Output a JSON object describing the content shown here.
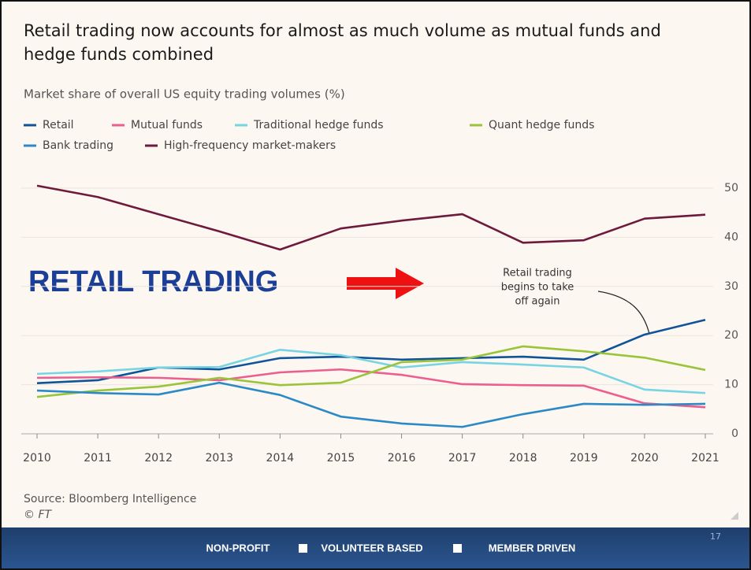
{
  "chart_data": {
    "type": "line",
    "title": "Retail trading now accounts for almost as much volume as mutual funds and hedge funds combined",
    "subtitle": "Market share of overall US equity trading volumes (%)",
    "x": [
      2010,
      2011,
      2012,
      2013,
      2014,
      2015,
      2016,
      2017,
      2018,
      2019,
      2020,
      2021
    ],
    "xlim": [
      2010,
      2021
    ],
    "xticks": [
      2010,
      2011,
      2012,
      2013,
      2014,
      2015,
      2016,
      2017,
      2018,
      2019,
      2020,
      2021
    ],
    "ylim": [
      0,
      50
    ],
    "yticks": [
      0,
      10,
      20,
      30,
      40,
      50
    ],
    "grid": true,
    "series": [
      {
        "name": "Retail",
        "color": "#0f5499",
        "values": [
          10.3,
          10.9,
          13.5,
          13.1,
          15.4,
          15.7,
          15.1,
          15.4,
          15.7,
          15.1,
          20.2,
          23.2
        ]
      },
      {
        "name": "Mutual funds",
        "color": "#eb5e8d",
        "values": [
          11.4,
          11.5,
          11.4,
          10.9,
          12.5,
          13.1,
          12.0,
          10.1,
          9.9,
          9.8,
          6.2,
          5.4
        ]
      },
      {
        "name": "Traditional hedge funds",
        "color": "#76d4e3",
        "values": [
          12.2,
          12.7,
          13.5,
          13.6,
          17.1,
          16.0,
          13.5,
          14.6,
          14.1,
          13.5,
          9.0,
          8.3
        ]
      },
      {
        "name": "Quant hedge funds",
        "color": "#9ac43a",
        "values": [
          7.5,
          8.8,
          9.6,
          11.4,
          9.9,
          10.4,
          14.6,
          15.1,
          17.8,
          16.8,
          15.5,
          13.0
        ]
      },
      {
        "name": "Bank trading",
        "color": "#2b8ac6",
        "values": [
          8.8,
          8.3,
          8.0,
          10.4,
          7.9,
          3.5,
          2.1,
          1.4,
          4.0,
          6.1,
          5.9,
          6.1
        ]
      },
      {
        "name": "High-frequency market-makers",
        "color": "#6e1a3c",
        "values": [
          50.5,
          48.2,
          44.7,
          41.2,
          37.5,
          41.8,
          43.4,
          44.7,
          38.9,
          39.4,
          43.8,
          44.6
        ]
      }
    ],
    "annotation": [
      "Retail trading",
      "begins to take",
      "off again"
    ],
    "source": "Source: Bloomberg Intelligence",
    "credit": "© FT"
  },
  "overlay": {
    "text": "RETAIL TRADING"
  },
  "footer": {
    "items": [
      "NON-PROFIT",
      "VOLUNTEER BASED",
      "MEMBER DRIVEN"
    ],
    "page": "17"
  }
}
